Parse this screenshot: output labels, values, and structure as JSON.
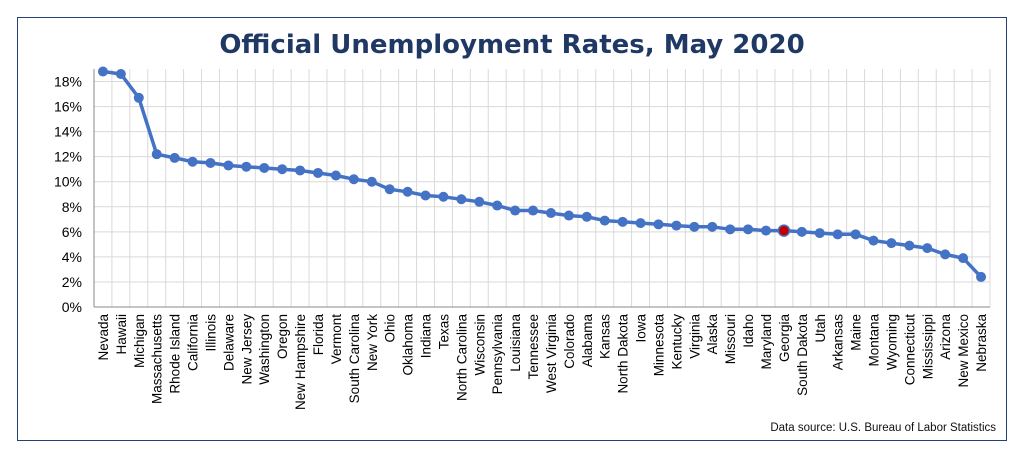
{
  "chart_data": {
    "type": "line",
    "title": "Official Unemployment Rates, May 2020",
    "source": "Data source: U.S. Bureau of Labor Statistics",
    "ylim": [
      0,
      19
    ],
    "yticks": [
      "0%",
      "2%",
      "4%",
      "6%",
      "8%",
      "10%",
      "12%",
      "14%",
      "16%",
      "18%"
    ],
    "grid": true,
    "series_color": "#4472c4",
    "highlight_color": "#c00000",
    "highlight": "Georgia",
    "categories": [
      "Nevada",
      "Hawaii",
      "Michigan",
      "Massachusetts",
      "Rhode Island",
      "California",
      "Illinois",
      "Delaware",
      "New Jersey",
      "Washington",
      "Oregon",
      "New Hampshire",
      "Florida",
      "Vermont",
      "South Carolina",
      "New York",
      "Ohio",
      "Oklahoma",
      "Indiana",
      "Texas",
      "North Carolina",
      "Wisconsin",
      "Pennsylvania",
      "Louisiana",
      "Tennessee",
      "West Virginia",
      "Colorado",
      "Alabama",
      "Kansas",
      "North Dakota",
      "Iowa",
      "Minnesota",
      "Kentucky",
      "Virginia",
      "Alaska",
      "Missouri",
      "Idaho",
      "Maryland",
      "Georgia",
      "South Dakota",
      "Utah",
      "Arkansas",
      "Maine",
      "Montana",
      "Wyoming",
      "Connecticut",
      "Mississippi",
      "Arizona",
      "New Mexico",
      "Nebraska"
    ],
    "values": [
      18.8,
      18.6,
      16.7,
      12.2,
      11.9,
      11.6,
      11.5,
      11.3,
      11.2,
      11.1,
      11.0,
      10.9,
      10.7,
      10.5,
      10.2,
      10.0,
      9.4,
      9.2,
      8.9,
      8.8,
      8.6,
      8.4,
      8.1,
      7.7,
      7.7,
      7.5,
      7.3,
      7.2,
      6.9,
      6.8,
      6.7,
      6.6,
      6.5,
      6.4,
      6.4,
      6.2,
      6.2,
      6.1,
      6.1,
      6.0,
      5.9,
      5.8,
      5.8,
      5.3,
      5.1,
      4.9,
      4.7,
      4.2,
      3.9,
      2.4
    ]
  }
}
